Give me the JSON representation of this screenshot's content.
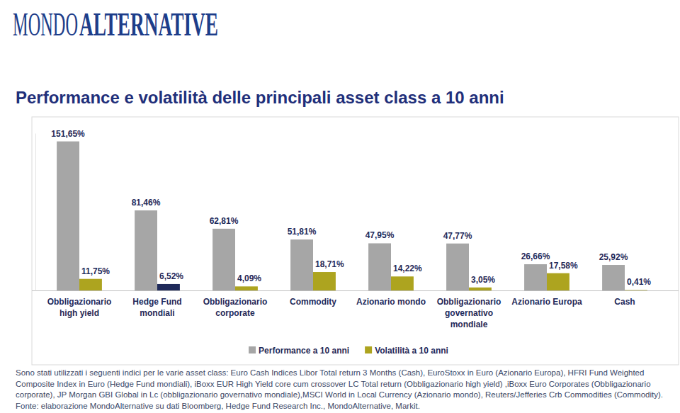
{
  "logo": [
    "MONDO",
    "ALTERNATIVE"
  ],
  "chart_data": {
    "type": "bar",
    "title": "Performance e volatilità delle principali asset class a 10 anni",
    "categories": [
      "Obbligazionario high yield",
      "Hedge Fund mondiali",
      "Obbligazionario corporate",
      "Commodity",
      "Azionario mondo",
      "Obbligazionario governativo mondiale",
      "Azionario Europa",
      "Cash"
    ],
    "series": [
      {
        "name": "Performance a 10 anni",
        "color": "#a6a6a6",
        "values": [
          151.65,
          81.46,
          62.81,
          51.81,
          47.95,
          47.77,
          26.66,
          25.92
        ],
        "value_labels": [
          "151,65%",
          "81,46%",
          "62,81%",
          "51,81%",
          "47,95%",
          "47,77%",
          "26,66%",
          "25,92%"
        ]
      },
      {
        "name": "Volatilità a 10 anni",
        "color": "#ada41f",
        "colors": [
          "#ada41f",
          "#1f2a5a",
          "#ada41f",
          "#ada41f",
          "#ada41f",
          "#ada41f",
          "#ada41f",
          "#ada41f"
        ],
        "values": [
          11.75,
          6.52,
          4.09,
          18.71,
          14.22,
          3.05,
          17.58,
          0.41
        ],
        "value_labels": [
          "11,75%",
          "6,52%",
          "4,09%",
          "18,71%",
          "14,22%",
          "3,05%",
          "17,58%",
          "0,41%"
        ]
      }
    ],
    "ylim": [
      0,
      160
    ],
    "yticks": [],
    "grid": false,
    "tick_labels": "x",
    "data_labels": true,
    "legend": "bottom",
    "annotations": [
      "Sono stati utilizzati i seguenti indici per le varie asset class: Euro Cash Indices Libor Total return 3 Months (Cash), EuroStoxx in Euro (Azionario Europa), HFRI Fund Weighted Composite Index in Euro (Hedge Fund mondiali), iBoxx EUR High Yield core cum crossover LC Total return (Obbligazionario high yield) ,iBoxx Euro Corporates (Obbligazionario corporate), JP Morgan GBI Global in Lc (obbligazionario governativo mondiale),MSCI World in Local Currency (Azionario mondo), Reuters/Jefferies Crb Commodities (Commodity).",
      "Fonte: elaborazione MondoAlternative su dati Bloomberg, Hedge Fund Research Inc., MondoAlternative, Markit."
    ]
  }
}
